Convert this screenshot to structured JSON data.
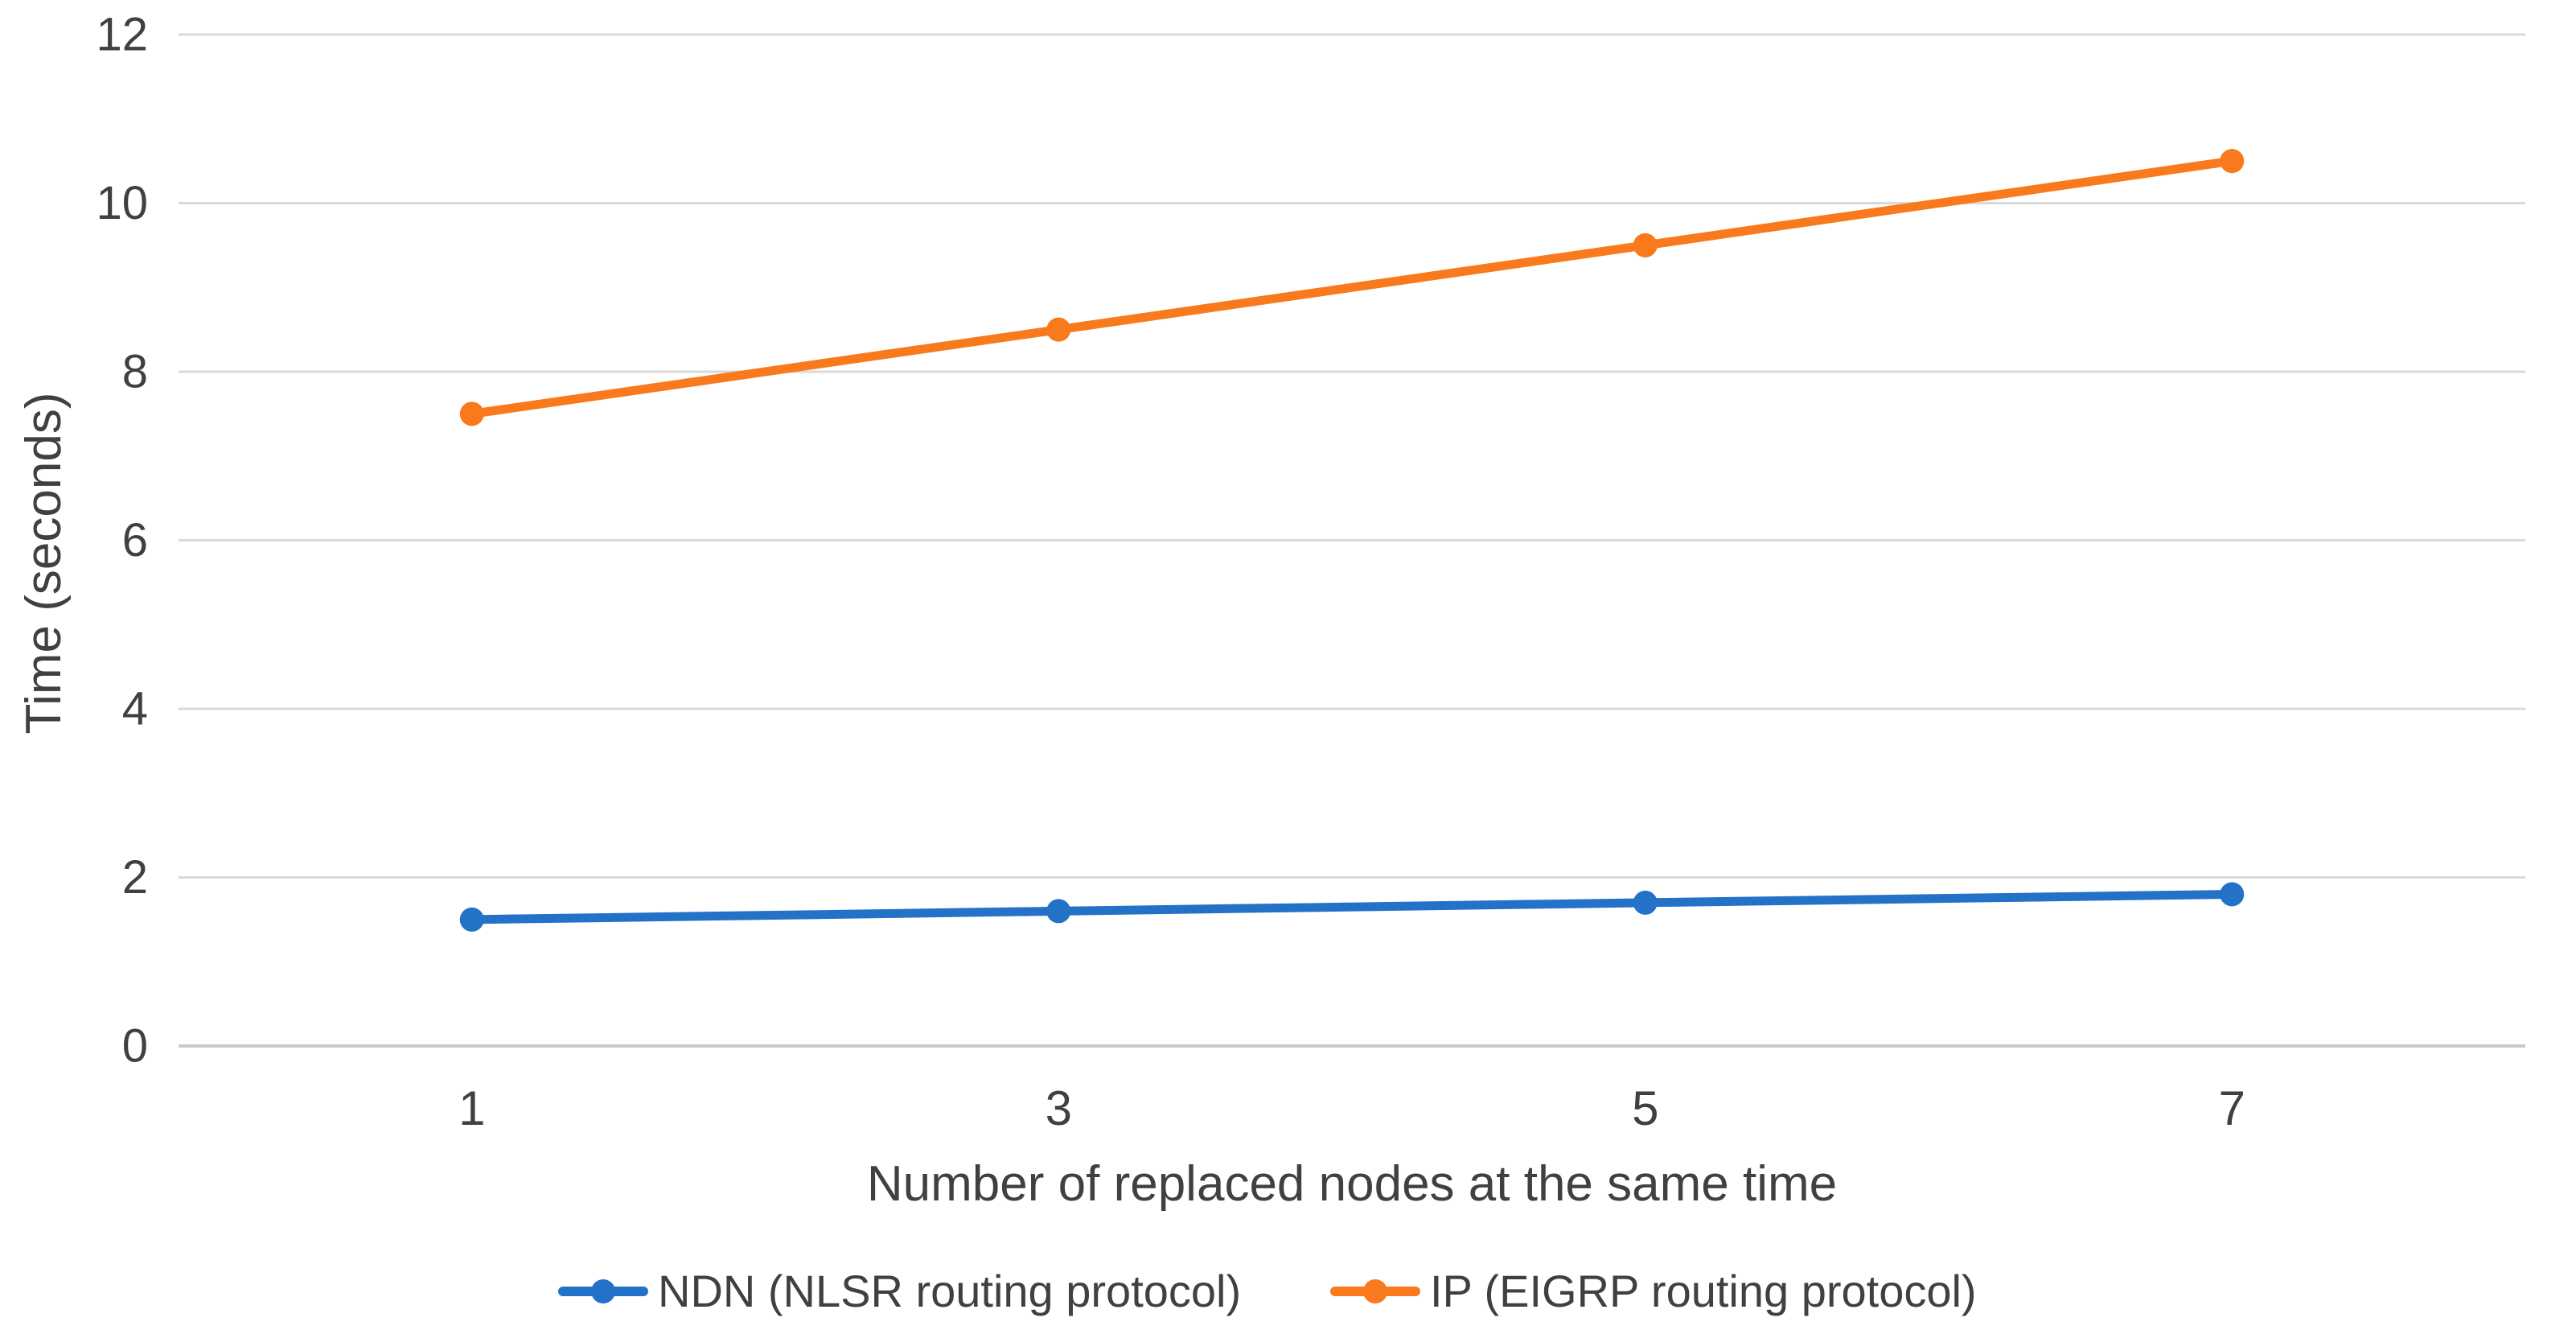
{
  "chart_data": {
    "type": "line",
    "title": "",
    "xlabel": "Number of replaced nodes at the same time",
    "ylabel": "Time (seconds)",
    "categories": [
      "1",
      "3",
      "5",
      "7"
    ],
    "series": [
      {
        "name": "NDN (NLSR routing protocol)",
        "values": [
          1.5,
          1.6,
          1.7,
          1.8
        ],
        "color": "#2372C8"
      },
      {
        "name": "IP (EIGRP routing protocol)",
        "values": [
          7.5,
          8.5,
          9.5,
          10.5
        ],
        "color": "#F87A1C"
      }
    ],
    "ylim": [
      0,
      12
    ],
    "ytick_step": 2,
    "yticks": [
      0,
      2,
      4,
      6,
      8,
      10,
      12
    ],
    "grid": true,
    "legend_position": "bottom",
    "colors": {
      "gridline": "#D9D9D9",
      "axis_line": "#C9C9C9",
      "text": "#404040",
      "background": "#FFFFFF"
    }
  }
}
